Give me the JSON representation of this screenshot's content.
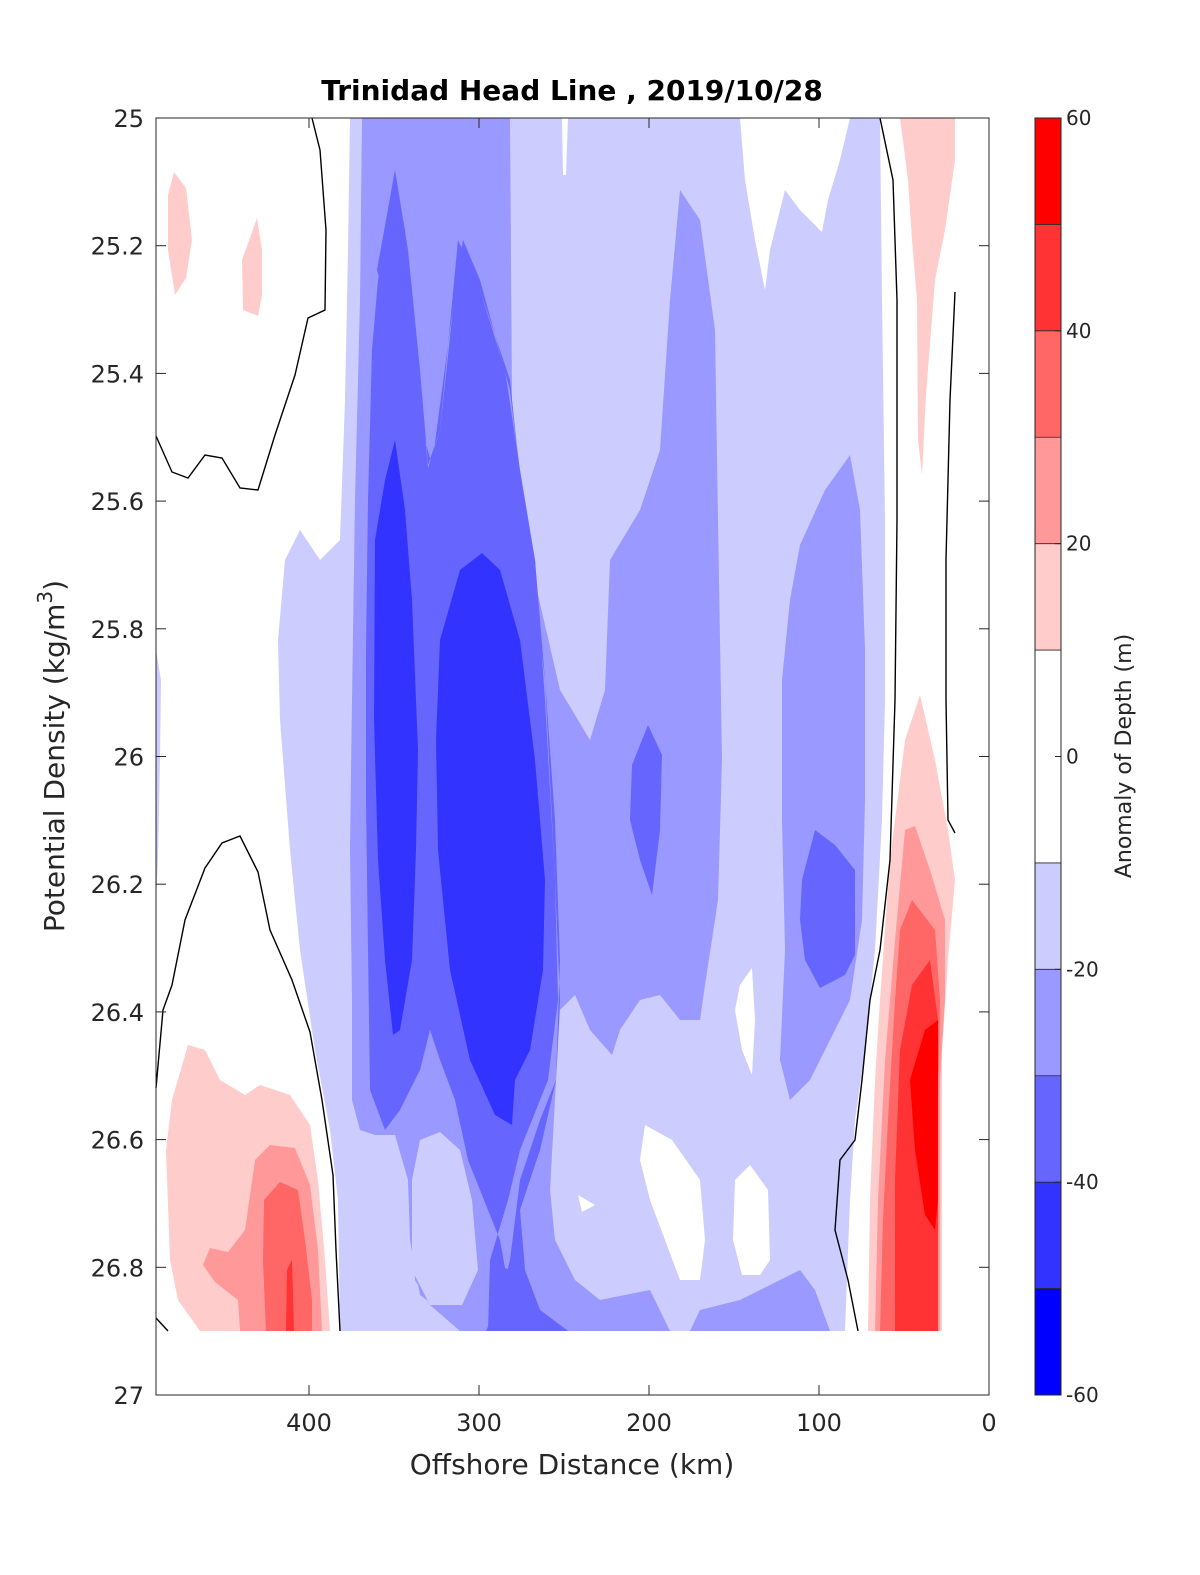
{
  "chart_data": {
    "type": "heatmap",
    "title": "Trinidad Head Line , 2019/10/28",
    "xlabel": "Offshore Distance (km)",
    "ylabel": "Potential Density (kg/m",
    "ylabel_superscript": "3",
    "ylabel_suffix": ")",
    "xlim": [
      490,
      0
    ],
    "ylim": [
      25,
      27
    ],
    "x_reversed": true,
    "y_reversed": true,
    "x_ticks": [
      400,
      300,
      200,
      100,
      0
    ],
    "y_ticks": [
      25,
      25.2,
      25.4,
      25.6,
      25.8,
      26,
      26.2,
      26.4,
      26.6,
      26.8,
      27
    ],
    "colorbar": {
      "label": "Anomaly of Depth (m)",
      "range": [
        -60,
        60
      ],
      "ticks": [
        60,
        40,
        20,
        0,
        -20,
        -40,
        -60
      ],
      "levels": [
        {
          "min": -60,
          "max": -50,
          "color": "#0000ff"
        },
        {
          "min": -50,
          "max": -40,
          "color": "#3333ff"
        },
        {
          "min": -40,
          "max": -30,
          "color": "#6666ff"
        },
        {
          "min": -30,
          "max": -20,
          "color": "#9999ff"
        },
        {
          "min": -20,
          "max": -10,
          "color": "#ccccff"
        },
        {
          "min": -10,
          "max": 10,
          "color": "#ffffff"
        },
        {
          "min": 10,
          "max": 20,
          "color": "#ffcccc"
        },
        {
          "min": 20,
          "max": 30,
          "color": "#ff9999"
        },
        {
          "min": 30,
          "max": 40,
          "color": "#ff6666"
        },
        {
          "min": 40,
          "max": 50,
          "color": "#ff3333"
        },
        {
          "min": 50,
          "max": 60,
          "color": "#ff0000"
        }
      ]
    },
    "data_extent": {
      "x": [
        485,
        20
      ],
      "y": [
        25,
        26.9
      ]
    },
    "grid": false,
    "legend": "none"
  }
}
